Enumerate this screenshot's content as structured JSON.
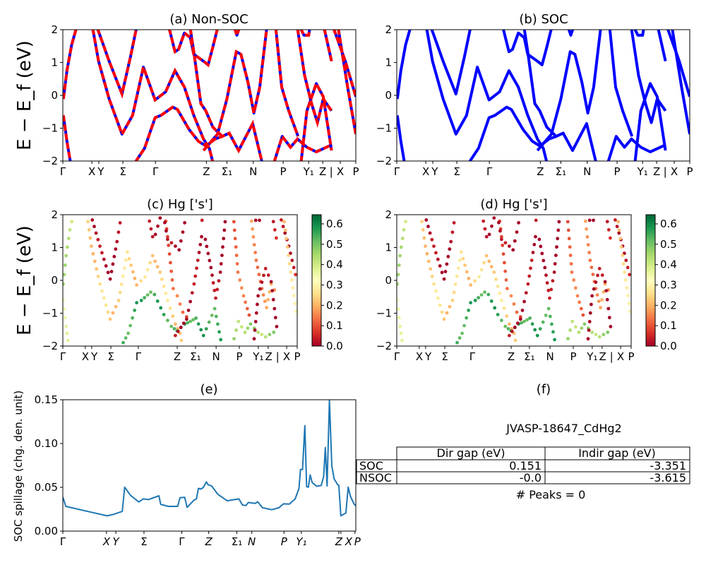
{
  "chart_data": [
    {
      "panel": "a",
      "type": "line",
      "title": "(a) Non-SOC",
      "ylabel": "E − E_f (eV)",
      "ylim": [
        -2,
        2
      ],
      "yticks": [
        2,
        1,
        0,
        -1,
        -2
      ],
      "xticks": [
        {
          "label": "Γ",
          "k": 0
        },
        {
          "label": "X",
          "k": 9.9
        },
        {
          "label": "Y",
          "k": 12.3
        },
        {
          "label": "Σ",
          "k": 20.5
        },
        {
          "label": "Γ",
          "k": 31.6
        },
        {
          "label": "Z",
          "k": 49
        },
        {
          "label": "Σ₁",
          "k": 56
        },
        {
          "label": "N",
          "k": 65
        },
        {
          "label": "P",
          "k": 75.2
        },
        {
          "label": "Y₁",
          "k": 83.9
        },
        {
          "label": "Z",
          "k": 88.7
        },
        {
          "label": "|",
          "k": 91.6
        },
        {
          "label": "X",
          "k": 94.7
        },
        {
          "label": "P",
          "k": 100
        }
      ],
      "colors": {
        "line": "#0000ff",
        "dash": "#ff0000"
      },
      "bands": [
        [
          [
            0.2,
            -0.61
          ],
          [
            1.4,
            -1.4
          ],
          [
            2.6,
            -2.04
          ]
        ],
        [
          [
            0.2,
            -0.11
          ],
          [
            1.4,
            0.75
          ],
          [
            3,
            1.54
          ],
          [
            4.6,
            2.04
          ]
        ],
        [
          [
            10.2,
            2.04
          ],
          [
            12.2,
            1.04
          ],
          [
            15.8,
            -0.11
          ],
          [
            20.2,
            -1.18
          ],
          [
            23.8,
            -0.61
          ],
          [
            27.5,
            0.86
          ],
          [
            31.5,
            -0.14
          ],
          [
            35.1,
            0.11
          ],
          [
            38.3,
            0.75
          ],
          [
            41.5,
            0.25
          ],
          [
            44.7,
            -0.61
          ],
          [
            48,
            -1.33
          ],
          [
            50,
            -1.61
          ],
          [
            51.2,
            -2.04
          ]
        ],
        [
          [
            11.8,
            2.04
          ],
          [
            15.8,
            1.04
          ],
          [
            20.2,
            0.04
          ],
          [
            23.1,
            1.18
          ],
          [
            25.1,
            2.04
          ]
        ],
        [
          [
            24.7,
            -2.04
          ],
          [
            27.9,
            -1.61
          ],
          [
            31.5,
            -0.68
          ],
          [
            33.5,
            -0.61
          ],
          [
            37.5,
            -0.36
          ],
          [
            39.1,
            -0.43
          ],
          [
            43.1,
            -1.04
          ],
          [
            46.3,
            -1.4
          ],
          [
            48.8,
            -1.54
          ],
          [
            52,
            -1.33
          ],
          [
            54.4,
            -1.25
          ],
          [
            56.8,
            -1.15
          ],
          [
            60,
            -1.68
          ],
          [
            64.8,
            -0.86
          ],
          [
            68,
            -2.04
          ]
        ],
        [
          [
            43.5,
            2.04
          ],
          [
            44.7,
            1.33
          ],
          [
            47.1,
            -0.25
          ],
          [
            48.8,
            -0.47
          ],
          [
            51.2,
            -0.97
          ],
          [
            54.4,
            -1.25
          ]
        ],
        [
          [
            48,
            -1.68
          ],
          [
            52.8,
            -1.18
          ],
          [
            56,
            -0.11
          ],
          [
            59.2,
            1.33
          ],
          [
            60.8,
            1.25
          ],
          [
            63.2,
            0.39
          ],
          [
            65.2,
            -0.54
          ],
          [
            67.2,
            0.25
          ],
          [
            69.6,
            2.04
          ]
        ],
        [
          [
            36.3,
            2.04
          ],
          [
            38.3,
            1.33
          ],
          [
            39.5,
            1.4
          ],
          [
            41.5,
            1.9
          ],
          [
            43.5,
            1.76
          ],
          [
            44.7,
            1.25
          ],
          [
            48,
            1.04
          ],
          [
            49.6,
            0.93
          ],
          [
            51.2,
            1.47
          ],
          [
            52.8,
            2.04
          ]
        ],
        [
          [
            72.1,
            -2.04
          ],
          [
            74.9,
            -1.25
          ],
          [
            77.7,
            -1.58
          ],
          [
            80.1,
            -1.33
          ],
          [
            83.3,
            -1.58
          ],
          [
            86.5,
            -1.72
          ],
          [
            91.7,
            -1.51
          ]
        ],
        [
          [
            80.1,
            2.04
          ],
          [
            82.5,
            0.61
          ],
          [
            84.9,
            -0.25
          ],
          [
            86.9,
            -0.83
          ],
          [
            88.9,
            -0.11
          ],
          [
            91.7,
            -0.47
          ]
        ],
        [
          [
            81.3,
            -2.04
          ],
          [
            83.3,
            -0.47
          ],
          [
            86.5,
            0.36
          ],
          [
            88.9,
            -0.04
          ],
          [
            91.7,
            -1.68
          ]
        ],
        [
          [
            72.7,
            2.04
          ],
          [
            74.7,
            0.25
          ],
          [
            77.1,
            -0.47
          ],
          [
            80.3,
            -1.25
          ]
        ],
        [
          [
            89.2,
            2.04
          ],
          [
            91.7,
            1.04
          ]
        ],
        [
          [
            92.4,
            2.04
          ],
          [
            96.4,
            1.04
          ],
          [
            100,
            -0.04
          ]
        ],
        [
          [
            94,
            2.04
          ],
          [
            97.2,
            0.25
          ],
          [
            100,
            -1.18
          ]
        ],
        [
          [
            81.1,
            2.04
          ],
          [
            82.3,
            1.83
          ],
          [
            83.9,
            1.83
          ],
          [
            84.3,
            2.04
          ]
        ],
        [
          [
            58.6,
            2.04
          ],
          [
            59.4,
            1.83
          ],
          [
            60.2,
            2.04
          ]
        ]
      ]
    },
    {
      "panel": "b",
      "type": "line",
      "title": "(b) SOC",
      "ylim": [
        -2,
        2
      ],
      "yticks": [
        2,
        1,
        0,
        -1,
        -2
      ],
      "colors": {
        "line": "#0000ff"
      }
    },
    {
      "panel": "c",
      "type": "scatter",
      "title": "(c)  Hg ['s']",
      "ylabel": "E − E_f (eV)",
      "ylim": [
        -2,
        2
      ],
      "yticks": [
        2,
        1,
        0,
        -1,
        -2
      ],
      "xticks": [
        {
          "label": "Γ",
          "k": 0
        },
        {
          "label": "X",
          "k": 9.6
        },
        {
          "label": "Y",
          "k": 12.3
        },
        {
          "label": "Σ",
          "k": 20.5
        },
        {
          "label": "Γ",
          "k": 32.2
        },
        {
          "label": "Z",
          "k": 48.8
        },
        {
          "label": "Σ₁",
          "k": 56.6
        },
        {
          "label": "N",
          "k": 65.4
        },
        {
          "label": "P",
          "k": 75.3
        },
        {
          "label": "Y₁",
          "k": 83.4
        },
        {
          "label": "Z",
          "k": 87.6
        },
        {
          "label": "|",
          "k": 91.6
        },
        {
          "label": "X",
          "k": 95.5
        },
        {
          "label": "P",
          "k": 100
        }
      ],
      "band_weights": [
        0.33,
        0.42,
        0.24,
        0.0,
        0.55,
        0.12,
        0.0,
        0.0,
        0.45,
        0.16,
        0.0,
        0.12,
        0.05,
        0.03,
        0.25,
        0.0,
        0.0
      ],
      "colorbar": {
        "cmap": "RdYlGn",
        "min": 0,
        "max": 0.645,
        "ticks": [
          "0.0",
          "0.1",
          "0.2",
          "0.3",
          "0.4",
          "0.5",
          "0.6"
        ]
      }
    },
    {
      "panel": "d",
      "type": "scatter",
      "title": "(d) Hg ['s']",
      "ylim": [
        -2,
        2
      ],
      "yticks": [
        2,
        1,
        0,
        -1,
        -2
      ],
      "band_weights": [
        0.33,
        0.42,
        0.24,
        0.0,
        0.55,
        0.12,
        0.0,
        0.0,
        0.45,
        0.16,
        0.0,
        0.12,
        0.05,
        0.03,
        0.25,
        0.0,
        0.0
      ],
      "colorbar": {
        "cmap": "RdYlGn",
        "min": 0,
        "max": 0.645,
        "ticks": [
          "0.0",
          "0.1",
          "0.2",
          "0.3",
          "0.4",
          "0.5",
          "0.6"
        ]
      }
    },
    {
      "panel": "e",
      "type": "line",
      "title": "(e)",
      "ylabel": "SOC spillage (chg. den. unit)",
      "ylim": [
        0,
        0.15
      ],
      "yticks": [
        "0.00",
        "0.05",
        "0.10",
        "0.15"
      ],
      "color": "#1f77b4",
      "xticks": [
        {
          "label": "Γ",
          "k": 0
        },
        {
          "label": "X",
          "k": 14.9
        },
        {
          "label": "Y",
          "k": 18.1
        },
        {
          "label": "Σ",
          "k": 27.7
        },
        {
          "label": "Γ",
          "k": 40.6
        },
        {
          "label": "Z",
          "k": 49.8
        },
        {
          "label": "Σ₁",
          "k": 59.4
        },
        {
          "label": "N",
          "k": 64.5
        },
        {
          "label": "P",
          "k": 75.5
        },
        {
          "label": "Y₁",
          "k": 81.4
        },
        {
          "label": "Z",
          "k": 94.2
        },
        {
          "label": "X",
          "k": 94.9
        },
        {
          "label": "P",
          "k": 99.7
        }
      ],
      "points": [
        [
          0,
          0.0389
        ],
        [
          1,
          0.0282
        ],
        [
          15.1,
          0.0174
        ],
        [
          17.5,
          0.0193
        ],
        [
          20.3,
          0.0225
        ],
        [
          21.1,
          0.0502
        ],
        [
          23.1,
          0.0408
        ],
        [
          25.9,
          0.0333
        ],
        [
          27.5,
          0.0368
        ],
        [
          29.2,
          0.036
        ],
        [
          32.8,
          0.0403
        ],
        [
          33.4,
          0.0306
        ],
        [
          36,
          0.0282
        ],
        [
          39.2,
          0.0282
        ],
        [
          40,
          0.0381
        ],
        [
          41.6,
          0.0386
        ],
        [
          42.4,
          0.0271
        ],
        [
          44.8,
          0.0354
        ],
        [
          45.6,
          0.0368
        ],
        [
          46.3,
          0.0488
        ],
        [
          47.2,
          0.048
        ],
        [
          48,
          0.0502
        ],
        [
          49,
          0.0561
        ],
        [
          49.6,
          0.0529
        ],
        [
          50.8,
          0.0515
        ],
        [
          52.9,
          0.0421
        ],
        [
          56.1,
          0.0346
        ],
        [
          58.5,
          0.036
        ],
        [
          60.1,
          0.0368
        ],
        [
          61.3,
          0.0298
        ],
        [
          62.5,
          0.0292
        ],
        [
          63.3,
          0.0327
        ],
        [
          65.7,
          0.0317
        ],
        [
          66.5,
          0.0335
        ],
        [
          68.1,
          0.0268
        ],
        [
          71.3,
          0.0244
        ],
        [
          73.7,
          0.0266
        ],
        [
          75.3,
          0.0311
        ],
        [
          77.3,
          0.0309
        ],
        [
          79.3,
          0.0368
        ],
        [
          80.6,
          0.0488
        ],
        [
          81.1,
          0.0703
        ],
        [
          81.8,
          0.0703
        ],
        [
          82.6,
          0.1205
        ],
        [
          83.2,
          0.0507
        ],
        [
          83.8,
          0.0502
        ],
        [
          84.4,
          0.0641
        ],
        [
          85.1,
          0.0555
        ],
        [
          86.6,
          0.0512
        ],
        [
          88.2,
          0.0521
        ],
        [
          89,
          0.0623
        ],
        [
          89.6,
          0.0953
        ],
        [
          90.2,
          0.0515
        ],
        [
          91,
          0.1495
        ],
        [
          91.8,
          0.0743
        ],
        [
          92.6,
          0.0596
        ],
        [
          93.8,
          0.0529
        ],
        [
          94.2,
          0.0523
        ],
        [
          94.9,
          0.0174
        ],
        [
          96.6,
          0.0207
        ],
        [
          97.4,
          0.0502
        ],
        [
          98.2,
          0.0394
        ],
        [
          99.4,
          0.0309
        ],
        [
          100,
          0.029
        ]
      ]
    },
    {
      "panel": "f",
      "type": "table",
      "title": "(f)",
      "subtitle": "JVASP-18647_CdHg2",
      "columns": [
        "Dir gap (eV)",
        "Indir gap (eV)"
      ],
      "rows": [
        {
          "label": "SOC",
          "values": [
            "0.151",
            "-3.351"
          ]
        },
        {
          "label": "NSOC",
          "values": [
            "-0.0",
            "-3.615"
          ]
        }
      ],
      "footer": "# Peaks = 0"
    }
  ]
}
